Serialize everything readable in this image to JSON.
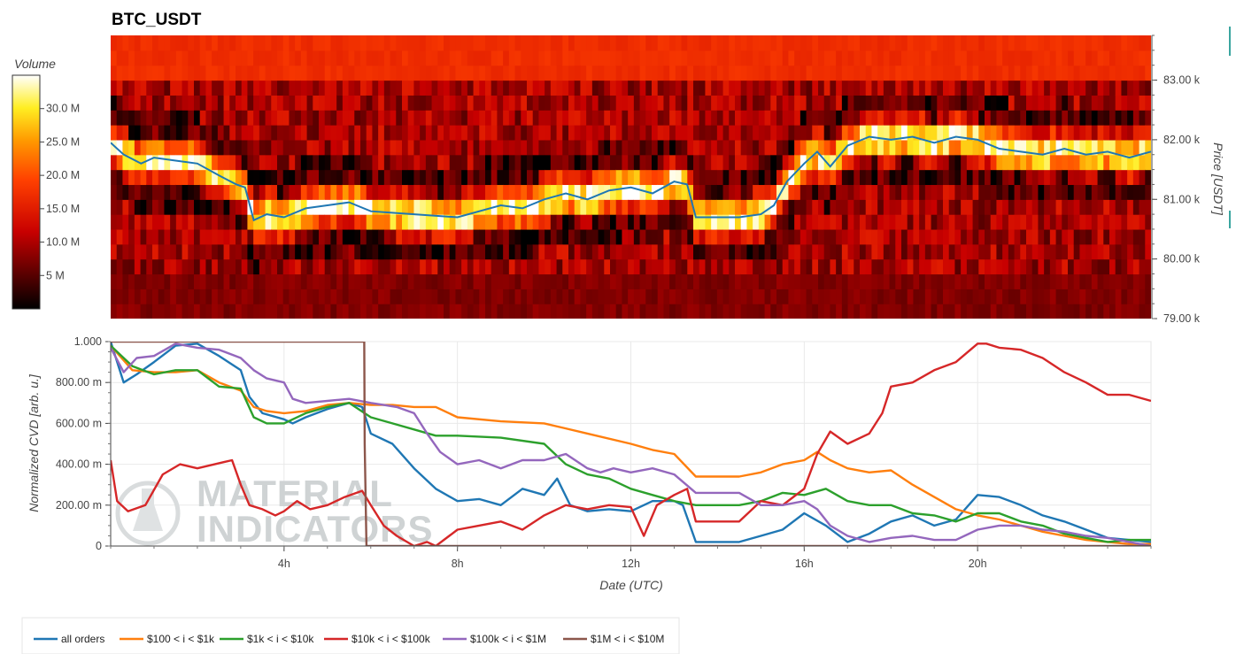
{
  "title": "BTC_USDT",
  "colors": {
    "all orders": "#1f77b4",
    "$100 < i < $1k": "#ff7f0e",
    "$1k < i < $10k": "#2ca02c",
    "$10k < i < $100k": "#d62728",
    "$100k < i < $1M": "#9467bd",
    "$1M < i < $10M": "#8c564b"
  },
  "watermark": [
    "MATERIAL",
    "INDICATORS"
  ],
  "chart_data": [
    {
      "type": "heatmap",
      "colorbar_title": "Volume",
      "colorbar_ticks": [
        "5 M",
        "10.0 M",
        "15.0 M",
        "20.0 M",
        "25.0 M",
        "30.0 M"
      ],
      "colorbar_tick_values": [
        5,
        10,
        15,
        20,
        25,
        30
      ],
      "colorbar_range": [
        0,
        35
      ],
      "colormap": "black-red-orange-yellow-white",
      "ylabel": "Price [USDT]",
      "y_ticks": [
        "79.00 k",
        "80.00 k",
        "81.00 k",
        "82.00 k",
        "83.00 k"
      ],
      "y_tick_values": [
        79000,
        80000,
        81000,
        82000,
        83000
      ],
      "ylim": [
        79000,
        83750
      ],
      "price_bins": [
        79125,
        79375,
        79625,
        79875,
        80125,
        80375,
        80625,
        80875,
        81125,
        81375,
        81625,
        81875,
        82125,
        82375,
        82625,
        82875,
        83125,
        83375,
        83625
      ],
      "x_range_hours": [
        0,
        24
      ],
      "price_line_color": "#1f77b4",
      "price_line": {
        "hours": [
          0.0,
          0.3,
          0.7,
          1.0,
          1.5,
          2.0,
          2.5,
          2.9,
          3.1,
          3.3,
          3.6,
          4.0,
          4.5,
          5.0,
          5.5,
          6.0,
          7.0,
          8.0,
          9.0,
          9.5,
          10.0,
          10.5,
          11.0,
          11.5,
          12.0,
          12.5,
          13.0,
          13.3,
          13.5,
          14.0,
          14.5,
          15.0,
          15.3,
          15.6,
          16.0,
          16.3,
          16.6,
          17.0,
          17.5,
          18.0,
          18.5,
          19.0,
          19.5,
          20.0,
          20.5,
          21.0,
          21.5,
          22.0,
          22.5,
          23.0,
          23.5,
          24.0
        ],
        "prices": [
          81950,
          81750,
          81600,
          81700,
          81650,
          81600,
          81400,
          81250,
          81200,
          80650,
          80750,
          80700,
          80850,
          80900,
          80950,
          80800,
          80750,
          80700,
          80900,
          80850,
          81000,
          81100,
          81000,
          81150,
          81200,
          81100,
          81300,
          81250,
          80700,
          80700,
          80700,
          80750,
          80900,
          81300,
          81600,
          81800,
          81550,
          81900,
          82050,
          82000,
          82050,
          81950,
          82050,
          82000,
          81850,
          81800,
          81750,
          81850,
          81750,
          81800,
          81700,
          81800
        ]
      }
    },
    {
      "type": "line",
      "xlabel": "Date (UTC)",
      "ylabel": "Normalized CVD [arb. u.]",
      "y_ticks": [
        "0",
        "200.00 m",
        "400.00 m",
        "600.00 m",
        "800.00 m",
        "1.000"
      ],
      "y_tick_values": [
        0,
        0.2,
        0.4,
        0.6,
        0.8,
        1.0
      ],
      "ylim": [
        0,
        1.0
      ],
      "x_ticks": [
        "4h",
        "8h",
        "12h",
        "16h",
        "20h"
      ],
      "x_tick_values": [
        4,
        8,
        12,
        16,
        20
      ],
      "xlim": [
        0,
        24
      ],
      "grid": true,
      "legend_position": "bottom",
      "series": [
        {
          "name": "all orders",
          "x": [
            0,
            0.3,
            0.6,
            1,
            1.5,
            2,
            2.5,
            3,
            3.2,
            3.5,
            4,
            4.2,
            4.5,
            5,
            5.5,
            5.8,
            6,
            6.5,
            7,
            7.5,
            8,
            8.5,
            9,
            9.5,
            10,
            10.3,
            10.6,
            11,
            11.5,
            12,
            12.5,
            13,
            13.2,
            13.5,
            14,
            14.5,
            15,
            15.5,
            16,
            16.5,
            17,
            17.5,
            18,
            18.5,
            19,
            19.5,
            20,
            20.5,
            21,
            21.5,
            22,
            22.5,
            23,
            23.5,
            24
          ],
          "y": [
            1.0,
            0.8,
            0.84,
            0.9,
            0.98,
            0.99,
            0.93,
            0.86,
            0.73,
            0.65,
            0.62,
            0.6,
            0.63,
            0.67,
            0.7,
            0.68,
            0.55,
            0.5,
            0.38,
            0.28,
            0.22,
            0.23,
            0.2,
            0.28,
            0.25,
            0.33,
            0.2,
            0.17,
            0.18,
            0.17,
            0.22,
            0.22,
            0.2,
            0.02,
            0.02,
            0.02,
            0.05,
            0.08,
            0.16,
            0.1,
            0.02,
            0.06,
            0.12,
            0.15,
            0.1,
            0.13,
            0.25,
            0.24,
            0.2,
            0.15,
            0.12,
            0.08,
            0.04,
            0.03,
            0.02
          ]
        },
        {
          "name": "$100 < i < $1k",
          "x": [
            0,
            0.5,
            1,
            1.5,
            2,
            2.5,
            3,
            3.3,
            3.6,
            4,
            4.5,
            5,
            5.5,
            6,
            6.5,
            7,
            7.5,
            8,
            9,
            10,
            11,
            12,
            12.5,
            13,
            13.5,
            14,
            14.5,
            15,
            15.5,
            16,
            16.3,
            16.6,
            17,
            17.5,
            18,
            18.5,
            19,
            19.5,
            20,
            20.5,
            21,
            21.5,
            22,
            22.5,
            23,
            23.5,
            24
          ],
          "y": [
            0.98,
            0.86,
            0.85,
            0.85,
            0.86,
            0.8,
            0.76,
            0.68,
            0.66,
            0.65,
            0.66,
            0.69,
            0.7,
            0.69,
            0.69,
            0.68,
            0.68,
            0.63,
            0.61,
            0.6,
            0.55,
            0.5,
            0.47,
            0.45,
            0.34,
            0.34,
            0.34,
            0.36,
            0.4,
            0.42,
            0.46,
            0.42,
            0.38,
            0.36,
            0.37,
            0.3,
            0.24,
            0.18,
            0.15,
            0.13,
            0.1,
            0.07,
            0.05,
            0.03,
            0.02,
            0.01,
            0.01
          ]
        },
        {
          "name": "$1k < i < $10k",
          "x": [
            0,
            0.5,
            1,
            1.5,
            2,
            2.5,
            3,
            3.3,
            3.6,
            4,
            4.5,
            5,
            5.5,
            6,
            6.5,
            7,
            7.5,
            8,
            9,
            10,
            10.5,
            11,
            11.5,
            12,
            12.5,
            13,
            13.5,
            14,
            14.5,
            15,
            15.5,
            16,
            16.5,
            17,
            17.5,
            18,
            18.5,
            19,
            19.5,
            20,
            20.5,
            21,
            21.5,
            22,
            22.5,
            23,
            23.5,
            24
          ],
          "y": [
            0.98,
            0.88,
            0.84,
            0.86,
            0.86,
            0.78,
            0.77,
            0.63,
            0.6,
            0.6,
            0.65,
            0.68,
            0.7,
            0.63,
            0.6,
            0.57,
            0.54,
            0.54,
            0.53,
            0.5,
            0.4,
            0.35,
            0.33,
            0.28,
            0.25,
            0.22,
            0.2,
            0.2,
            0.2,
            0.22,
            0.26,
            0.25,
            0.28,
            0.22,
            0.2,
            0.2,
            0.16,
            0.15,
            0.12,
            0.16,
            0.16,
            0.12,
            0.1,
            0.06,
            0.04,
            0.02,
            0.03,
            0.03
          ]
        },
        {
          "name": "$10k < i < $100k",
          "x": [
            0,
            0.15,
            0.4,
            0.8,
            1.2,
            1.6,
            2,
            2.4,
            2.8,
            3,
            3.2,
            3.5,
            3.8,
            4,
            4.3,
            4.6,
            5,
            5.4,
            5.8,
            6,
            6.3,
            6.6,
            7,
            7.3,
            7.5,
            8,
            8.5,
            9,
            9.5,
            10,
            10.5,
            11,
            11.5,
            12,
            12.3,
            12.6,
            13,
            13.3,
            13.5,
            14,
            14.5,
            15,
            15.5,
            16,
            16.3,
            16.6,
            17,
            17.5,
            17.8,
            18,
            18.5,
            19,
            19.5,
            20,
            20.2,
            20.5,
            21,
            21.5,
            22,
            22.5,
            23,
            23.5,
            24
          ],
          "y": [
            0.42,
            0.22,
            0.17,
            0.2,
            0.35,
            0.4,
            0.38,
            0.4,
            0.42,
            0.3,
            0.2,
            0.18,
            0.15,
            0.17,
            0.22,
            0.18,
            0.2,
            0.24,
            0.27,
            0.2,
            0.1,
            0.05,
            0.0,
            0.02,
            0.0,
            0.08,
            0.1,
            0.12,
            0.08,
            0.15,
            0.2,
            0.18,
            0.2,
            0.19,
            0.05,
            0.2,
            0.25,
            0.28,
            0.12,
            0.12,
            0.12,
            0.22,
            0.2,
            0.28,
            0.45,
            0.56,
            0.5,
            0.55,
            0.65,
            0.78,
            0.8,
            0.86,
            0.9,
            0.99,
            0.99,
            0.97,
            0.96,
            0.92,
            0.85,
            0.8,
            0.74,
            0.74,
            0.71
          ]
        },
        {
          "name": "$100k < i < $1M",
          "x": [
            0,
            0.3,
            0.6,
            1,
            1.5,
            2,
            2.5,
            3,
            3.3,
            3.6,
            4,
            4.2,
            4.5,
            5,
            5.5,
            6,
            6.3,
            6.6,
            7,
            7.3,
            7.6,
            8,
            8.5,
            9,
            9.5,
            10,
            10.5,
            11,
            11.3,
            11.6,
            12,
            12.5,
            13,
            13.5,
            14,
            14.5,
            15,
            15.5,
            16,
            16.3,
            16.6,
            17,
            17.5,
            18,
            18.5,
            19,
            19.5,
            20,
            20.5,
            21,
            21.5,
            22,
            22.5,
            23,
            23.5,
            24
          ],
          "y": [
            0.97,
            0.85,
            0.92,
            0.93,
            0.99,
            0.97,
            0.96,
            0.92,
            0.86,
            0.82,
            0.8,
            0.72,
            0.7,
            0.71,
            0.72,
            0.7,
            0.69,
            0.68,
            0.65,
            0.55,
            0.46,
            0.4,
            0.42,
            0.38,
            0.42,
            0.42,
            0.45,
            0.38,
            0.36,
            0.38,
            0.36,
            0.38,
            0.35,
            0.26,
            0.26,
            0.26,
            0.2,
            0.2,
            0.22,
            0.18,
            0.1,
            0.05,
            0.02,
            0.04,
            0.05,
            0.03,
            0.03,
            0.08,
            0.1,
            0.1,
            0.08,
            0.07,
            0.05,
            0.04,
            0.02,
            0.0
          ]
        },
        {
          "name": "$1M < i < $10M",
          "x": [
            0,
            5.85,
            5.86,
            5.9,
            24
          ],
          "y": [
            1.0,
            1.0,
            0.5,
            0.0,
            0.0
          ]
        }
      ]
    }
  ]
}
